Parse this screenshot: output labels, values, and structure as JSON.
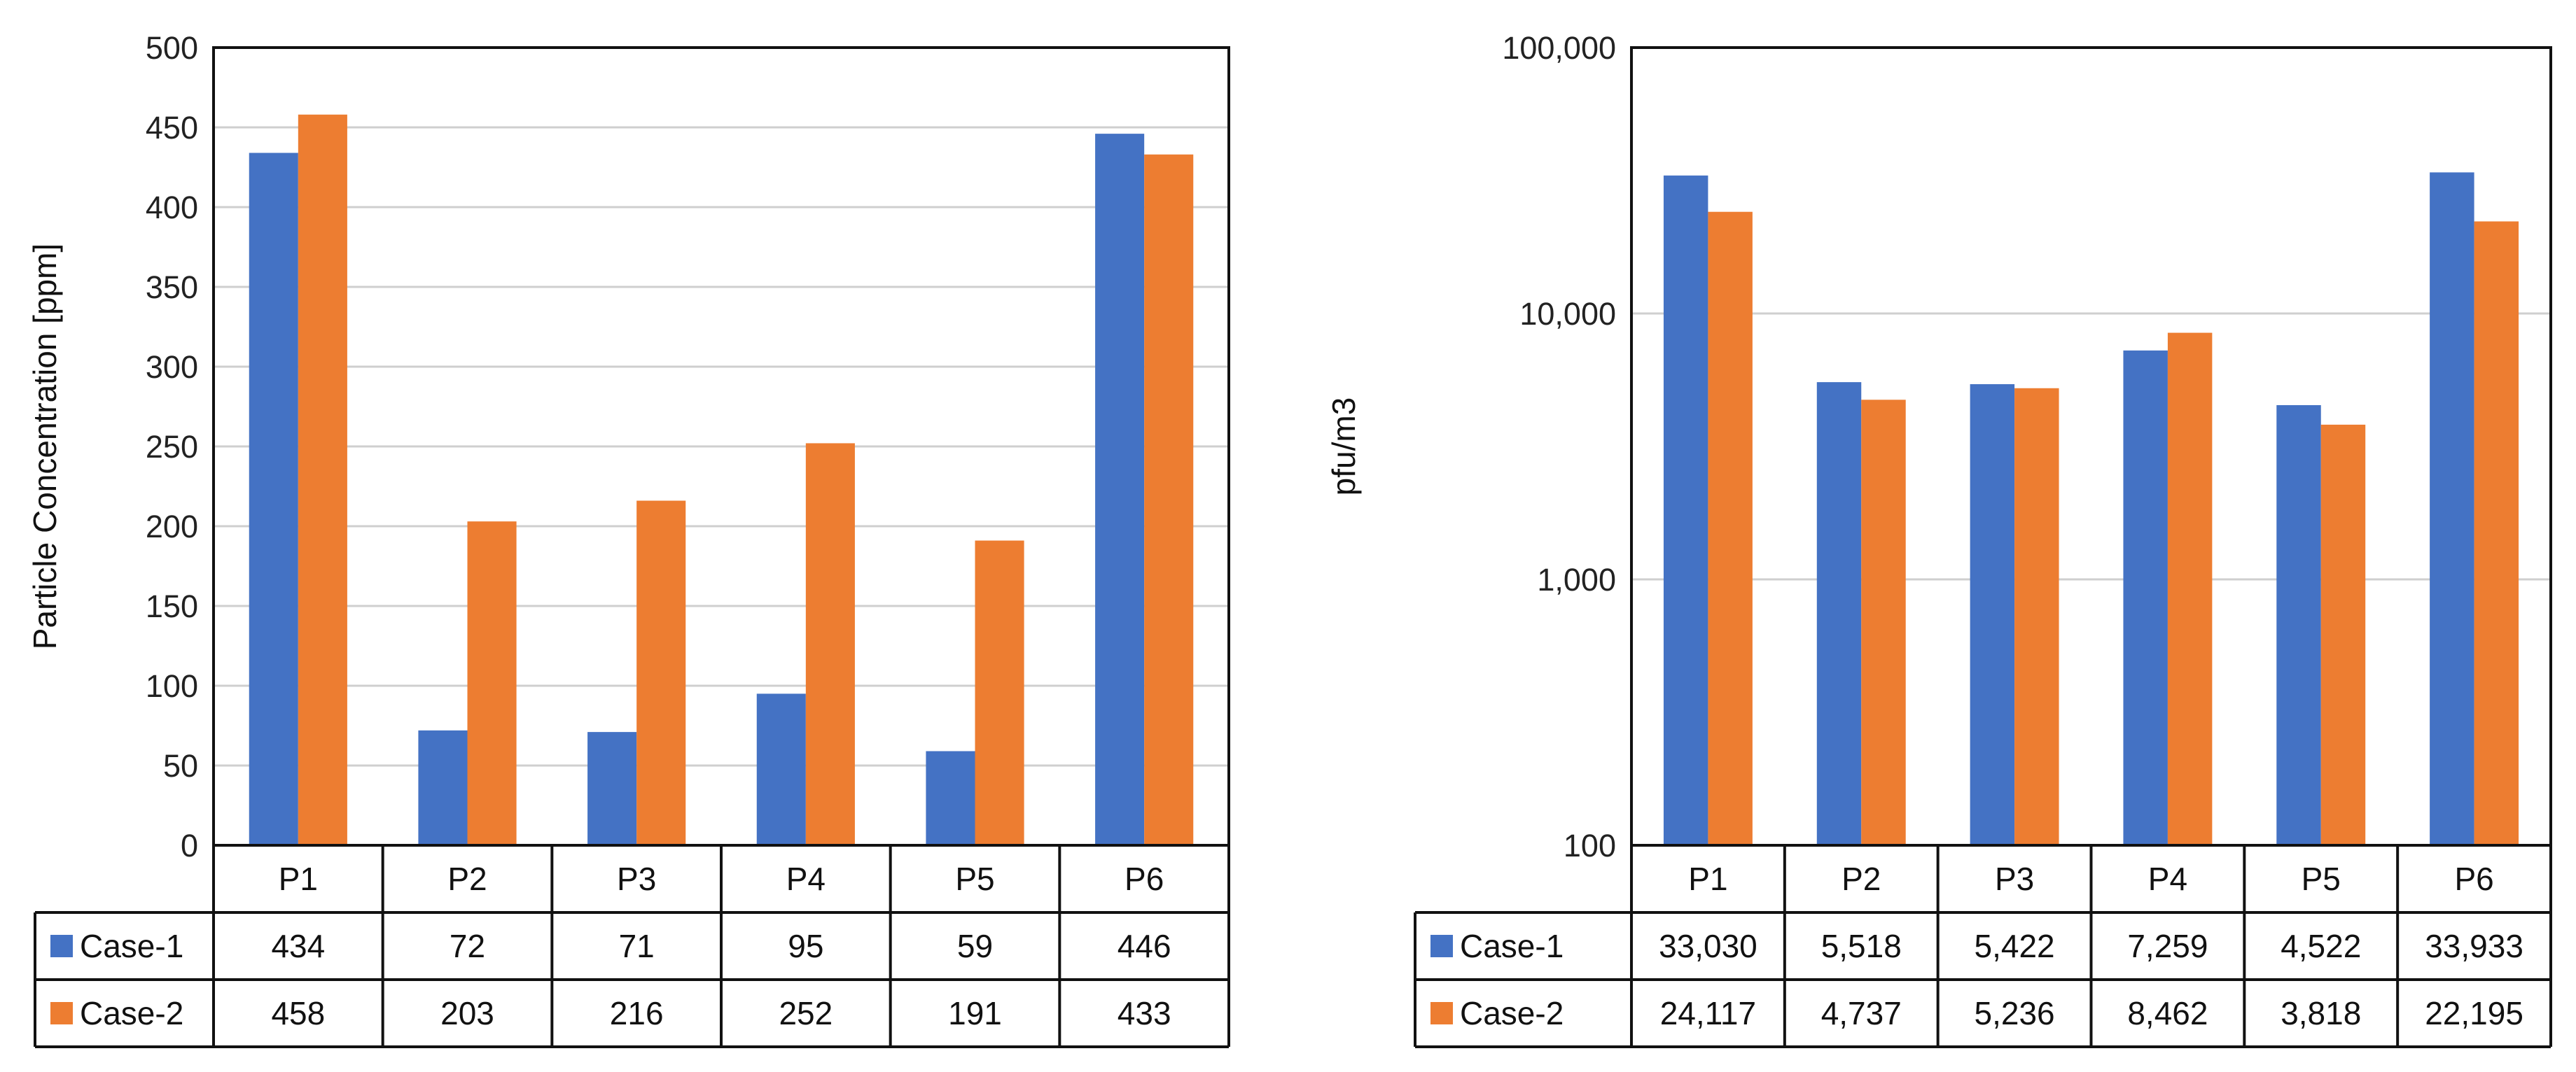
{
  "chart_data": [
    {
      "type": "bar",
      "title": "",
      "xlabel": "",
      "ylabel": "Particle Concentration [ppm]",
      "ylim": [
        0,
        500
      ],
      "yscale": "linear",
      "yticks": [
        0,
        50,
        100,
        150,
        200,
        250,
        300,
        350,
        400,
        450,
        500
      ],
      "ytick_labels": [
        "0",
        "50",
        "100",
        "150",
        "200",
        "250",
        "300",
        "350",
        "400",
        "450",
        "500"
      ],
      "categories": [
        "P1",
        "P2",
        "P3",
        "P4",
        "P5",
        "P6"
      ],
      "series": [
        {
          "name": "Case-1",
          "color": "#4472C4",
          "values": [
            434,
            72,
            71,
            95,
            59,
            446
          ],
          "labels": [
            "434",
            "72",
            "71",
            "95",
            "59",
            "446"
          ]
        },
        {
          "name": "Case-2",
          "color": "#ED7D31",
          "values": [
            458,
            203,
            216,
            252,
            191,
            433
          ],
          "labels": [
            "458",
            "203",
            "216",
            "252",
            "191",
            "433"
          ]
        }
      ],
      "grid": true,
      "legend": "data table below chart"
    },
    {
      "type": "bar",
      "title": "",
      "xlabel": "",
      "ylabel": "pfu/m3",
      "ylim": [
        100,
        100000
      ],
      "yscale": "log",
      "yticks": [
        100,
        1000,
        10000,
        100000
      ],
      "ytick_labels": [
        "100",
        "1,000",
        "10,000",
        "100,000"
      ],
      "categories": [
        "P1",
        "P2",
        "P3",
        "P4",
        "P5",
        "P6"
      ],
      "series": [
        {
          "name": "Case-1",
          "color": "#4472C4",
          "values": [
            33030,
            5518,
            5422,
            7259,
            4522,
            33933
          ],
          "labels": [
            "33,030",
            "5,518",
            "5,422",
            "7,259",
            "4,522",
            "33,933"
          ]
        },
        {
          "name": "Case-2",
          "color": "#ED7D31",
          "values": [
            24117,
            4737,
            5236,
            8462,
            3818,
            22195
          ],
          "labels": [
            "24,117",
            "4,737",
            "5,236",
            "8,462",
            "3,818",
            "22,195"
          ]
        }
      ],
      "grid": true,
      "legend": "data table below chart"
    }
  ]
}
